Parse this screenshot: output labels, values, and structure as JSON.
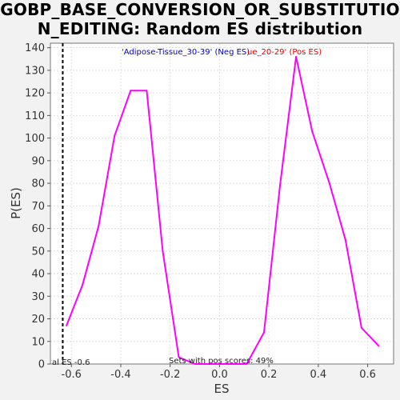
{
  "chart_data": {
    "type": "line",
    "title": "GOBP_BASE_CONVERSION_OR_SUBSTITUTIO\nN_EDITING: Random ES distribution",
    "xlabel": "ES",
    "ylabel": "P(ES)",
    "xlim": [
      -0.685,
      0.705
    ],
    "ylim": [
      0,
      142
    ],
    "x_ticks": [
      -0.6,
      -0.4,
      -0.2,
      0.0,
      0.2,
      0.4,
      0.6
    ],
    "x_tick_labels": [
      "-0.6",
      "-0.4",
      "-0.2",
      "0.0",
      "0.2",
      "0.4",
      "0.6"
    ],
    "y_ticks": [
      0,
      10,
      20,
      30,
      40,
      50,
      60,
      70,
      80,
      90,
      100,
      110,
      120,
      130,
      140
    ],
    "y_tick_labels": [
      "0",
      "10",
      "20",
      "30",
      "40",
      "50",
      "60",
      "70",
      "80",
      "90",
      "100",
      "110",
      "120",
      "130",
      "140"
    ],
    "grid": true,
    "series": [
      {
        "color": "#ff00ff",
        "x": [
          -0.62,
          -0.555,
          -0.49,
          -0.425,
          -0.36,
          -0.295,
          -0.23,
          -0.165,
          -0.1,
          -0.035,
          0.03,
          0.11,
          0.18,
          0.245,
          0.31,
          0.375,
          0.445,
          0.51,
          0.575,
          0.645
        ],
        "y": [
          17,
          35,
          61,
          101,
          121,
          121,
          50,
          3,
          0,
          0,
          0,
          0,
          14,
          79,
          136,
          103,
          80,
          55,
          16,
          8
        ]
      }
    ],
    "vline": {
      "x": -0.635,
      "style": "dashed",
      "color": "#000000"
    },
    "legend": {
      "neg_label": "'Adipose-Tissue_30-39' (Neg ES)",
      "neg_color": "#0000cc",
      "pos_label": "ue_20-29' (Pos ES)",
      "pos_color": "#dd0000",
      "placement": "top-center"
    },
    "annotations": {
      "actual_es": "al ES -0.6",
      "pos_scores": "Sets with pos scores: 49%"
    }
  }
}
